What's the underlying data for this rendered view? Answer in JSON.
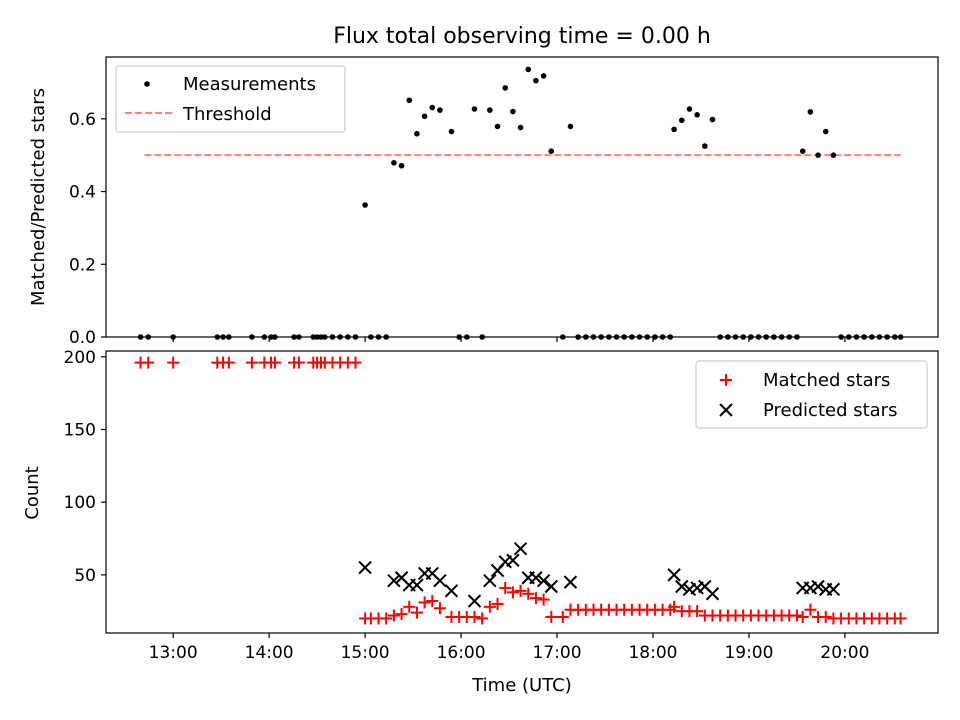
{
  "chart_data": [
    {
      "type": "scatter",
      "title": "Flux total observing time = 0.00 h",
      "xlabel": "",
      "ylabel": "Matched/Predicted stars",
      "xlim": [
        12.3,
        20.97
      ],
      "ylim": [
        0.0,
        0.77
      ],
      "yticks": [
        0.0,
        0.2,
        0.4,
        0.6
      ],
      "ytick_labels": [
        "0.0",
        "0.2",
        "0.4",
        "0.6"
      ],
      "xticks": [
        13,
        14,
        15,
        16,
        17,
        18,
        19,
        20
      ],
      "legend_position": "top-left",
      "legend": [
        "Measurements",
        "Threshold"
      ],
      "grid": false,
      "threshold": {
        "value": 0.5,
        "x_start": 12.7,
        "x_end": 20.58,
        "color": "#ff7f7f",
        "style": "dashed"
      },
      "series": [
        {
          "name": "Measurements",
          "marker": "dot",
          "color": "#000000",
          "x": [
            12.66,
            12.74,
            13.0,
            13.46,
            13.52,
            13.58,
            13.82,
            13.95,
            14.02,
            14.06,
            14.26,
            14.31,
            14.46,
            14.5,
            14.54,
            14.58,
            14.66,
            14.74,
            14.82,
            14.9,
            15.0,
            15.06,
            15.14,
            15.22,
            15.3,
            15.38,
            15.46,
            15.54,
            15.62,
            15.7,
            15.78,
            15.9,
            15.98,
            16.06,
            16.14,
            16.22,
            16.3,
            16.38,
            16.46,
            16.54,
            16.62,
            16.7,
            16.78,
            16.86,
            16.94,
            17.06,
            17.14,
            17.22,
            17.3,
            17.38,
            17.46,
            17.54,
            17.62,
            17.7,
            17.78,
            17.86,
            17.94,
            18.02,
            18.1,
            18.18,
            18.22,
            18.3,
            18.38,
            18.46,
            18.54,
            18.62,
            18.7,
            18.78,
            18.86,
            18.94,
            19.02,
            19.1,
            19.18,
            19.26,
            19.34,
            19.42,
            19.5,
            19.56,
            19.64,
            19.72,
            19.8,
            19.88,
            19.96,
            20.04,
            20.12,
            20.2,
            20.28,
            20.36,
            20.44,
            20.52,
            20.58
          ],
          "y": [
            0.0,
            0.0,
            0.0,
            0.0,
            0.0,
            0.0,
            0.0,
            0.0,
            0.0,
            0.0,
            0.0,
            0.0,
            0.0,
            0.0,
            0.0,
            0.0,
            0.0,
            0.0,
            0.0,
            0.0,
            0.363,
            0.0,
            0.0,
            0.0,
            0.479,
            0.471,
            0.651,
            0.559,
            0.607,
            0.631,
            0.624,
            0.565,
            0.0,
            0.0,
            0.627,
            0.0,
            0.624,
            0.579,
            0.685,
            0.62,
            0.576,
            0.736,
            0.705,
            0.718,
            0.511,
            0.0,
            0.579,
            0.0,
            0.0,
            0.0,
            0.0,
            0.0,
            0.0,
            0.0,
            0.0,
            0.0,
            0.0,
            0.0,
            0.0,
            0.0,
            0.571,
            0.596,
            0.627,
            0.611,
            0.525,
            0.598,
            0.0,
            0.0,
            0.0,
            0.0,
            0.0,
            0.0,
            0.0,
            0.0,
            0.0,
            0.0,
            0.0,
            0.511,
            0.619,
            0.5,
            0.565,
            0.5,
            0.0,
            0.0,
            0.0,
            0.0,
            0.0,
            0.0,
            0.0,
            0.0,
            0.0
          ]
        }
      ]
    },
    {
      "type": "scatter",
      "title": "",
      "xlabel": "Time (UTC)",
      "ylabel": "Count",
      "xlim": [
        12.3,
        20.97
      ],
      "ylim": [
        10,
        204
      ],
      "yticks": [
        50,
        100,
        150,
        200
      ],
      "ytick_labels": [
        "50",
        "100",
        "150",
        "200"
      ],
      "xticks": [
        13,
        14,
        15,
        16,
        17,
        18,
        19,
        20
      ],
      "xtick_labels": [
        "13:00",
        "14:00",
        "15:00",
        "16:00",
        "17:00",
        "18:00",
        "19:00",
        "20:00"
      ],
      "legend_position": "top-right",
      "legend": [
        "Matched stars",
        "Predicted stars"
      ],
      "grid": false,
      "series": [
        {
          "name": "Matched stars",
          "marker": "plus",
          "color": "#ff0000",
          "x": [
            12.66,
            12.74,
            13.0,
            13.46,
            13.52,
            13.58,
            13.82,
            13.95,
            14.02,
            14.06,
            14.26,
            14.31,
            14.46,
            14.5,
            14.54,
            14.58,
            14.66,
            14.74,
            14.82,
            14.9,
            15.0,
            15.06,
            15.14,
            15.22,
            15.3,
            15.38,
            15.46,
            15.54,
            15.62,
            15.7,
            15.78,
            15.9,
            15.98,
            16.06,
            16.14,
            16.22,
            16.3,
            16.38,
            16.46,
            16.54,
            16.62,
            16.7,
            16.78,
            16.86,
            16.94,
            17.06,
            17.14,
            17.22,
            17.3,
            17.38,
            17.46,
            17.54,
            17.62,
            17.7,
            17.78,
            17.86,
            17.94,
            18.02,
            18.1,
            18.18,
            18.22,
            18.3,
            18.38,
            18.46,
            18.54,
            18.62,
            18.7,
            18.78,
            18.86,
            18.94,
            19.02,
            19.1,
            19.18,
            19.26,
            19.34,
            19.42,
            19.5,
            19.56,
            19.64,
            19.72,
            19.8,
            19.88,
            19.96,
            20.04,
            20.12,
            20.2,
            20.28,
            20.36,
            20.44,
            20.52,
            20.58
          ],
          "y": [
            196,
            196,
            196,
            196,
            196,
            196,
            196,
            196,
            196,
            196,
            196,
            196,
            196,
            196,
            196,
            196,
            196,
            196,
            196,
            196,
            20,
            20,
            20,
            20,
            22,
            23,
            28,
            24,
            31,
            32,
            27,
            21,
            21,
            21,
            21,
            20,
            28,
            30,
            41,
            38,
            39,
            37,
            34,
            33,
            21,
            21,
            26,
            26,
            26,
            26,
            26,
            26,
            26,
            26,
            26,
            26,
            26,
            26,
            26,
            26,
            28,
            25,
            25,
            25,
            22,
            22,
            22,
            22,
            22,
            22,
            22,
            22,
            22,
            22,
            22,
            22,
            22,
            21,
            26,
            21,
            21,
            20,
            20,
            20,
            20,
            20,
            20,
            20,
            20,
            20,
            20
          ]
        },
        {
          "name": "Predicted stars",
          "marker": "x",
          "color": "#000000",
          "x": [
            15.0,
            15.3,
            15.38,
            15.46,
            15.54,
            15.62,
            15.7,
            15.78,
            15.9,
            16.14,
            16.3,
            16.38,
            16.46,
            16.54,
            16.62,
            16.7,
            16.78,
            16.86,
            16.94,
            17.14,
            18.22,
            18.3,
            18.38,
            18.46,
            18.54,
            18.62,
            19.56,
            19.64,
            19.72,
            19.8,
            19.88
          ],
          "y": [
            55,
            46,
            48,
            43,
            43,
            51,
            51,
            46,
            39,
            32,
            46,
            53,
            59,
            60,
            68,
            48,
            48,
            46,
            42,
            45,
            50,
            42,
            40,
            41,
            42,
            37,
            41,
            41,
            42,
            40,
            40
          ]
        }
      ]
    }
  ]
}
